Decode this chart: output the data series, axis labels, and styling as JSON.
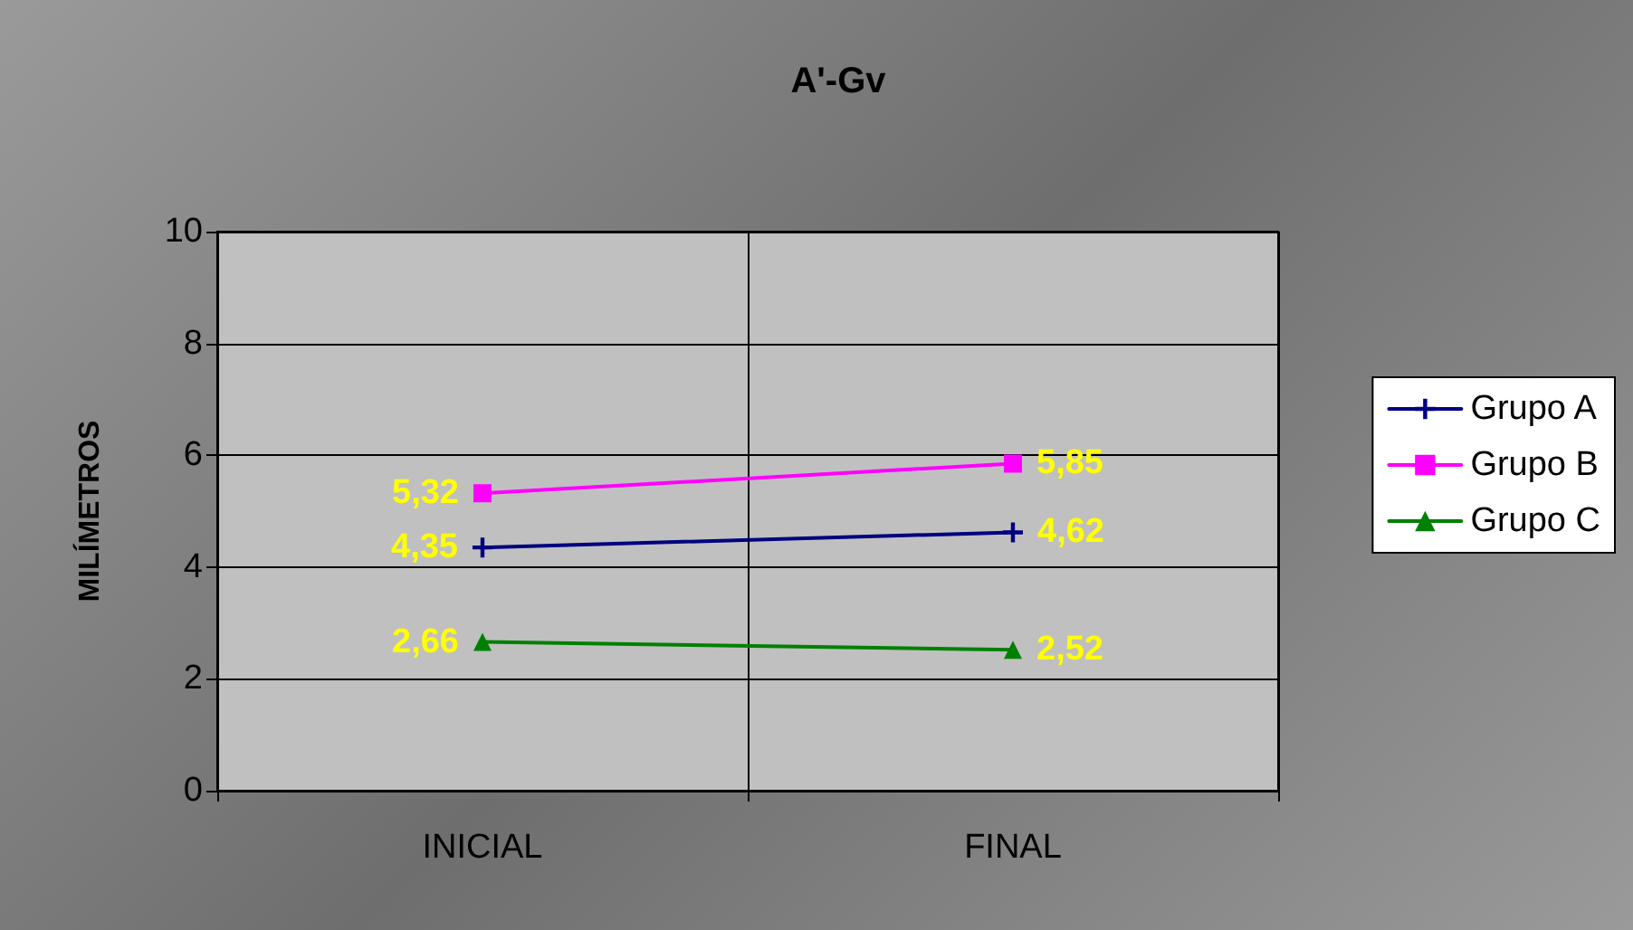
{
  "chart_data": {
    "type": "line",
    "title": "A'-Gv",
    "ylabel": "MILÍMETROS",
    "categories": [
      "INICIAL",
      "FINAL"
    ],
    "series": [
      {
        "name": "Grupo A",
        "color": "#000080",
        "marker": "cross",
        "values": [
          4.35,
          4.62
        ],
        "value_labels": [
          "4,35",
          "4,62"
        ]
      },
      {
        "name": "Grupo B",
        "color": "#ff00ff",
        "marker": "square",
        "values": [
          5.32,
          5.85
        ],
        "value_labels": [
          "5,32",
          "5,85"
        ]
      },
      {
        "name": "Grupo C",
        "color": "#008000",
        "marker": "triangle",
        "values": [
          2.66,
          2.52
        ],
        "value_labels": [
          "2,66",
          "2,52"
        ]
      }
    ],
    "ylim": [
      0,
      10
    ],
    "yticks": [
      0,
      2,
      4,
      6,
      8,
      10
    ],
    "grid": "y",
    "legend": "right",
    "line_style": "solid"
  }
}
